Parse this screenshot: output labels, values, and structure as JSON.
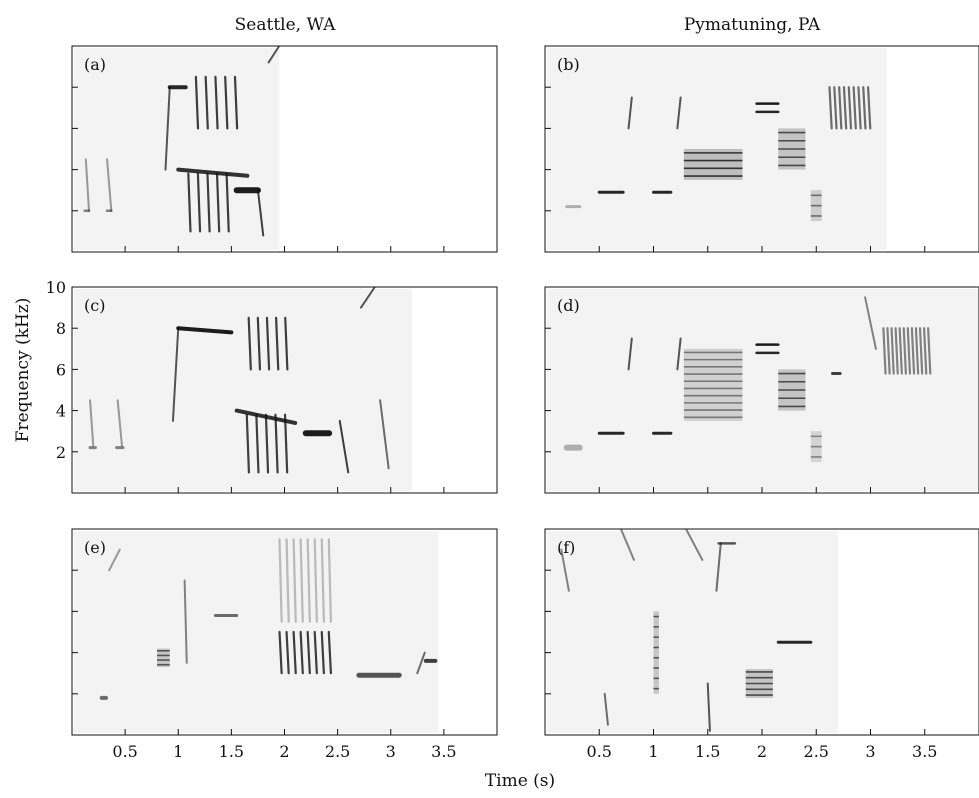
{
  "figure": {
    "column_titles": [
      "Seattle, WA",
      "Pymatuning, PA"
    ],
    "ylabel": "Frequency (kHz)",
    "xlabel": "Time (s)"
  },
  "chart_data": [
    {
      "type": "heatmap",
      "panel_label": "(a)",
      "column": "Seattle, WA",
      "xlim": [
        0,
        4.0
      ],
      "ylim": [
        0,
        10
      ],
      "x_ticks": [
        0.5,
        1,
        1.5,
        2,
        2.5,
        3,
        3.5
      ],
      "y_ticks": [
        2,
        4,
        6,
        8,
        10
      ],
      "x_tick_labels_shown": false,
      "y_tick_labels_shown": false,
      "render_until_s": 1.95,
      "marks": [
        {
          "kind": "tone",
          "t0": 0.12,
          "t1": 0.16,
          "f0": 2.0,
          "f1": 2.0,
          "w": 2.5,
          "o": 0.5
        },
        {
          "kind": "tone",
          "t0": 0.33,
          "t1": 0.37,
          "f0": 2.0,
          "f1": 2.0,
          "w": 2.5,
          "o": 0.5
        },
        {
          "kind": "tone",
          "t0": 0.92,
          "t1": 1.07,
          "f0": 8.0,
          "f1": 8.0,
          "w": 4,
          "o": 0.9
        },
        {
          "kind": "tone",
          "t0": 1.0,
          "t1": 1.65,
          "f0": 4.0,
          "f1": 3.7,
          "w": 4,
          "o": 0.85
        },
        {
          "kind": "tone",
          "t0": 1.55,
          "t1": 1.75,
          "f0": 3.0,
          "f1": 3.0,
          "w": 6,
          "o": 0.95
        },
        {
          "kind": "sweep",
          "t0": 0.13,
          "t1": 0.16,
          "f0": 4.5,
          "f1": 2.0,
          "o": 0.4
        },
        {
          "kind": "sweep",
          "t0": 0.33,
          "t1": 0.37,
          "f0": 4.5,
          "f1": 2.0,
          "o": 0.4
        },
        {
          "kind": "sweep",
          "t0": 0.88,
          "t1": 0.92,
          "f0": 4.0,
          "f1": 8.0,
          "o": 0.7
        },
        {
          "kind": "sweep",
          "t0": 1.75,
          "t1": 1.8,
          "f0": 3.0,
          "f1": 0.8,
          "o": 0.8
        },
        {
          "kind": "sweep",
          "t0": 1.85,
          "t1": 1.95,
          "f0": 9.2,
          "f1": 10.0,
          "o": 0.7
        },
        {
          "kind": "trill",
          "t0": 1.12,
          "t1": 1.58,
          "f0": 6.0,
          "f1": 8.5,
          "n": 5,
          "o": 0.8
        },
        {
          "kind": "trill",
          "t0": 1.05,
          "t1": 1.5,
          "f0": 1.0,
          "f1": 3.8,
          "n": 5,
          "o": 0.8
        }
      ]
    },
    {
      "type": "heatmap",
      "panel_label": "(b)",
      "column": "Pymatuning, PA",
      "xlim": [
        0,
        4.0
      ],
      "ylim": [
        0,
        10
      ],
      "x_ticks": [
        0.5,
        1,
        1.5,
        2,
        2.5,
        3,
        3.5
      ],
      "y_ticks": [
        2,
        4,
        6,
        8,
        10
      ],
      "x_tick_labels_shown": false,
      "y_tick_labels_shown": false,
      "render_until_s": 3.15,
      "marks": [
        {
          "kind": "tone",
          "t0": 0.2,
          "t1": 0.32,
          "f0": 2.2,
          "f1": 2.2,
          "w": 3,
          "o": 0.3
        },
        {
          "kind": "tone",
          "t0": 0.5,
          "t1": 0.72,
          "f0": 2.9,
          "f1": 2.9,
          "w": 3,
          "o": 0.9
        },
        {
          "kind": "tone",
          "t0": 1.0,
          "t1": 1.16,
          "f0": 2.9,
          "f1": 2.9,
          "w": 3,
          "o": 0.9
        },
        {
          "kind": "tone",
          "t0": 1.95,
          "t1": 2.15,
          "f0": 7.2,
          "f1": 7.2,
          "w": 2.5,
          "o": 0.95
        },
        {
          "kind": "tone",
          "t0": 1.95,
          "t1": 2.15,
          "f0": 6.8,
          "f1": 6.8,
          "w": 2.5,
          "o": 0.9
        },
        {
          "kind": "sweep",
          "t0": 0.77,
          "t1": 0.8,
          "f0": 6.0,
          "f1": 7.5,
          "o": 0.7
        },
        {
          "kind": "sweep",
          "t0": 1.22,
          "t1": 1.25,
          "f0": 6.0,
          "f1": 7.5,
          "o": 0.7
        },
        {
          "kind": "band",
          "t0": 1.28,
          "t1": 1.82,
          "f0": 3.5,
          "f1": 5.0,
          "n": 4,
          "o": 0.85
        },
        {
          "kind": "band",
          "t0": 2.15,
          "t1": 2.4,
          "f0": 4.0,
          "f1": 6.0,
          "n": 5,
          "o": 0.75
        },
        {
          "kind": "band",
          "t0": 2.45,
          "t1": 2.55,
          "f0": 1.5,
          "f1": 3.0,
          "n": 3,
          "o": 0.6
        },
        {
          "kind": "trill",
          "t0": 2.6,
          "t1": 3.0,
          "f0": 6.0,
          "f1": 8.0,
          "n": 9,
          "o": 0.6
        }
      ]
    },
    {
      "type": "heatmap",
      "panel_label": "(c)",
      "column": "Seattle, WA",
      "xlim": [
        0,
        4.0
      ],
      "ylim": [
        0,
        10
      ],
      "x_ticks": [
        0.5,
        1,
        1.5,
        2,
        2.5,
        3,
        3.5
      ],
      "y_ticks": [
        2,
        4,
        6,
        8,
        10
      ],
      "y_tick_labels": [
        "2",
        "4",
        "6",
        "8",
        "10"
      ],
      "x_tick_labels_shown": false,
      "y_tick_labels_shown": true,
      "render_until_s": 3.2,
      "marks": [
        {
          "kind": "tone",
          "t0": 0.17,
          "t1": 0.22,
          "f0": 2.2,
          "f1": 2.2,
          "w": 3,
          "o": 0.5
        },
        {
          "kind": "tone",
          "t0": 0.42,
          "t1": 0.48,
          "f0": 2.2,
          "f1": 2.2,
          "w": 3,
          "o": 0.5
        },
        {
          "kind": "tone",
          "t0": 1.0,
          "t1": 1.5,
          "f0": 8.0,
          "f1": 7.8,
          "w": 4,
          "o": 0.95
        },
        {
          "kind": "tone",
          "t0": 1.55,
          "t1": 2.1,
          "f0": 4.0,
          "f1": 3.4,
          "w": 4,
          "o": 0.85
        },
        {
          "kind": "tone",
          "t0": 2.2,
          "t1": 2.42,
          "f0": 2.9,
          "f1": 2.9,
          "w": 6,
          "o": 0.95
        },
        {
          "kind": "sweep",
          "t0": 0.17,
          "t1": 0.2,
          "f0": 4.5,
          "f1": 2.3,
          "o": 0.4
        },
        {
          "kind": "sweep",
          "t0": 0.43,
          "t1": 0.47,
          "f0": 4.5,
          "f1": 2.3,
          "o": 0.4
        },
        {
          "kind": "sweep",
          "t0": 0.95,
          "t1": 1.0,
          "f0": 3.5,
          "f1": 8.0,
          "o": 0.7
        },
        {
          "kind": "sweep",
          "t0": 2.52,
          "t1": 2.6,
          "f0": 3.5,
          "f1": 1.0,
          "o": 0.8
        },
        {
          "kind": "sweep",
          "t0": 2.72,
          "t1": 2.85,
          "f0": 9.0,
          "f1": 10.0,
          "o": 0.7
        },
        {
          "kind": "sweep",
          "t0": 2.9,
          "t1": 2.98,
          "f0": 4.5,
          "f1": 1.2,
          "o": 0.6
        },
        {
          "kind": "trill",
          "t0": 1.62,
          "t1": 2.05,
          "f0": 6.0,
          "f1": 8.5,
          "n": 5,
          "o": 0.8
        },
        {
          "kind": "trill",
          "t0": 1.6,
          "t1": 2.05,
          "f0": 1.0,
          "f1": 3.8,
          "n": 5,
          "o": 0.8
        }
      ]
    },
    {
      "type": "heatmap",
      "panel_label": "(d)",
      "column": "Pymatuning, PA",
      "xlim": [
        0,
        4.0
      ],
      "ylim": [
        0,
        10
      ],
      "x_ticks": [
        0.5,
        1,
        1.5,
        2,
        2.5,
        3,
        3.5
      ],
      "y_ticks": [
        2,
        4,
        6,
        8,
        10
      ],
      "x_tick_labels_shown": false,
      "y_tick_labels_shown": false,
      "render_until_s": 4.0,
      "marks": [
        {
          "kind": "tone",
          "t0": 0.2,
          "t1": 0.32,
          "f0": 2.2,
          "f1": 2.2,
          "w": 6,
          "o": 0.3
        },
        {
          "kind": "tone",
          "t0": 0.5,
          "t1": 0.72,
          "f0": 2.9,
          "f1": 2.9,
          "w": 3,
          "o": 0.9
        },
        {
          "kind": "tone",
          "t0": 1.0,
          "t1": 1.16,
          "f0": 2.9,
          "f1": 2.9,
          "w": 3,
          "o": 0.9
        },
        {
          "kind": "tone",
          "t0": 1.95,
          "t1": 2.15,
          "f0": 7.2,
          "f1": 7.2,
          "w": 2.5,
          "o": 0.95
        },
        {
          "kind": "tone",
          "t0": 1.95,
          "t1": 2.15,
          "f0": 6.8,
          "f1": 6.8,
          "w": 2.5,
          "o": 0.9
        },
        {
          "kind": "tone",
          "t0": 2.65,
          "t1": 2.72,
          "f0": 5.8,
          "f1": 5.8,
          "w": 3,
          "o": 0.8
        },
        {
          "kind": "sweep",
          "t0": 0.77,
          "t1": 0.8,
          "f0": 6.0,
          "f1": 7.5,
          "o": 0.7
        },
        {
          "kind": "sweep",
          "t0": 1.22,
          "t1": 1.25,
          "f0": 6.0,
          "f1": 7.5,
          "o": 0.7
        },
        {
          "kind": "sweep",
          "t0": 2.95,
          "t1": 3.05,
          "f0": 9.5,
          "f1": 7.0,
          "o": 0.5
        },
        {
          "kind": "band",
          "t0": 1.28,
          "t1": 1.82,
          "f0": 3.5,
          "f1": 7.0,
          "n": 10,
          "o": 0.55
        },
        {
          "kind": "band",
          "t0": 2.15,
          "t1": 2.4,
          "f0": 4.0,
          "f1": 6.0,
          "n": 5,
          "o": 0.75
        },
        {
          "kind": "band",
          "t0": 2.45,
          "t1": 2.55,
          "f0": 1.5,
          "f1": 3.0,
          "n": 3,
          "o": 0.5
        },
        {
          "kind": "trill",
          "t0": 3.1,
          "t1": 3.55,
          "f0": 5.8,
          "f1": 8.0,
          "n": 12,
          "o": 0.5
        }
      ]
    },
    {
      "type": "heatmap",
      "panel_label": "(e)",
      "column": "Seattle, WA",
      "xlim": [
        0,
        4.0
      ],
      "ylim": [
        0,
        10
      ],
      "x_ticks": [
        0.5,
        1,
        1.5,
        2,
        2.5,
        3,
        3.5
      ],
      "x_tick_labels": [
        "0.5",
        "1",
        "1.5",
        "2",
        "2.5",
        "3",
        "3.5"
      ],
      "y_ticks": [
        2,
        4,
        6,
        8,
        10
      ],
      "x_tick_labels_shown": true,
      "y_tick_labels_shown": false,
      "render_until_s": 3.45,
      "marks": [
        {
          "kind": "tone",
          "t0": 0.28,
          "t1": 0.32,
          "f0": 1.8,
          "f1": 1.8,
          "w": 4,
          "o": 0.6
        },
        {
          "kind": "tone",
          "t0": 1.35,
          "t1": 1.55,
          "f0": 5.8,
          "f1": 5.8,
          "w": 3,
          "o": 0.6
        },
        {
          "kind": "tone",
          "t0": 2.7,
          "t1": 3.08,
          "f0": 2.9,
          "f1": 2.9,
          "w": 5,
          "o": 0.7
        },
        {
          "kind": "tone",
          "t0": 3.33,
          "t1": 3.42,
          "f0": 3.6,
          "f1": 3.6,
          "w": 4,
          "o": 0.8
        },
        {
          "kind": "sweep",
          "t0": 0.35,
          "t1": 0.45,
          "f0": 8.0,
          "f1": 9.0,
          "o": 0.4
        },
        {
          "kind": "sweep",
          "t0": 1.06,
          "t1": 1.08,
          "f0": 7.5,
          "f1": 3.5,
          "o": 0.5
        },
        {
          "kind": "sweep",
          "t0": 3.25,
          "t1": 3.32,
          "f0": 3.0,
          "f1": 4.0,
          "o": 0.6
        },
        {
          "kind": "band",
          "t0": 0.8,
          "t1": 0.92,
          "f0": 3.3,
          "f1": 4.2,
          "n": 4,
          "o": 0.7
        },
        {
          "kind": "trill",
          "t0": 1.92,
          "t1": 2.45,
          "f0": 3.0,
          "f1": 5.0,
          "n": 8,
          "o": 0.8
        },
        {
          "kind": "trill",
          "t0": 1.92,
          "t1": 2.45,
          "f0": 5.5,
          "f1": 9.5,
          "n": 8,
          "o": 0.25
        }
      ]
    },
    {
      "type": "heatmap",
      "panel_label": "(f)",
      "column": "Pymatuning, PA",
      "xlim": [
        0,
        4.0
      ],
      "ylim": [
        0,
        10
      ],
      "x_ticks": [
        0.5,
        1,
        1.5,
        2,
        2.5,
        3,
        3.5
      ],
      "x_tick_labels": [
        "0.5",
        "1",
        "1.5",
        "2",
        "2.5",
        "3",
        "3.5"
      ],
      "y_ticks": [
        2,
        4,
        6,
        8,
        10
      ],
      "x_tick_labels_shown": true,
      "y_tick_labels_shown": false,
      "render_until_s": 2.7,
      "marks": [
        {
          "kind": "tone",
          "t0": 2.15,
          "t1": 2.45,
          "f0": 4.5,
          "f1": 4.5,
          "w": 3,
          "o": 0.9
        },
        {
          "kind": "tone",
          "t0": 1.6,
          "t1": 1.75,
          "f0": 9.3,
          "f1": 9.3,
          "w": 2.5,
          "o": 0.7
        },
        {
          "kind": "sweep",
          "t0": 0.15,
          "t1": 0.22,
          "f0": 9.0,
          "f1": 7.0,
          "o": 0.5
        },
        {
          "kind": "sweep",
          "t0": 0.55,
          "t1": 0.58,
          "f0": 2.0,
          "f1": 0.5,
          "o": 0.6
        },
        {
          "kind": "sweep",
          "t0": 0.7,
          "t1": 0.82,
          "f0": 10.0,
          "f1": 8.5,
          "o": 0.5
        },
        {
          "kind": "sweep",
          "t0": 1.3,
          "t1": 1.45,
          "f0": 10.0,
          "f1": 8.5,
          "o": 0.5
        },
        {
          "kind": "sweep",
          "t0": 1.5,
          "t1": 1.52,
          "f0": 2.5,
          "f1": 0.2,
          "o": 0.7
        },
        {
          "kind": "sweep",
          "t0": 1.58,
          "t1": 1.62,
          "f0": 7.0,
          "f1": 9.3,
          "o": 0.6
        },
        {
          "kind": "band",
          "t0": 1.0,
          "t1": 1.05,
          "f0": 2.0,
          "f1": 6.0,
          "n": 8,
          "o": 0.7
        },
        {
          "kind": "band",
          "t0": 1.85,
          "t1": 2.1,
          "f0": 1.8,
          "f1": 3.2,
          "n": 5,
          "o": 0.75
        }
      ]
    }
  ]
}
